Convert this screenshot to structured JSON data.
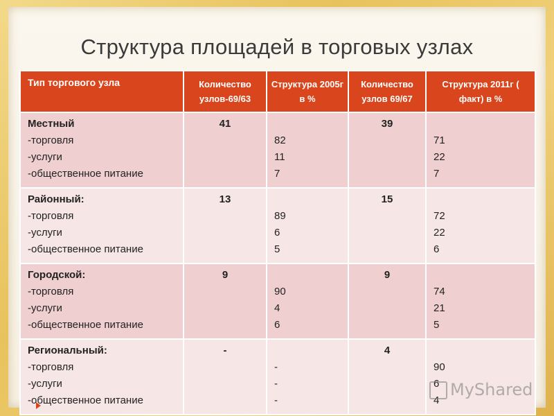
{
  "title": "Структура площадей в торговых узлах",
  "table": {
    "headers": [
      "Тип торгового узла",
      "Количество узлов-69/63",
      "Структура 2005г в %",
      "Количество узлов 69/67",
      "Структура 2011г ( факт) в %"
    ],
    "rows": [
      {
        "name": "Местный",
        "items": [
          "-торговля",
          "-услуги",
          "-общественное питание"
        ],
        "count_2005": "41",
        "struct_2005": [
          "82",
          "11",
          "7"
        ],
        "count_2011": "39",
        "struct_2011": [
          "71",
          "22",
          "7"
        ]
      },
      {
        "name": "Районный:",
        "items": [
          "-торговля",
          "-услуги",
          "-общественное питание"
        ],
        "count_2005": "13",
        "struct_2005": [
          "89",
          "6",
          "5"
        ],
        "count_2011": "15",
        "struct_2011": [
          "72",
          "22",
          "6"
        ]
      },
      {
        "name": "Городской:",
        "items": [
          "-торговля",
          "-услуги",
          "-общественное питание"
        ],
        "count_2005": "9",
        "struct_2005": [
          "90",
          "4",
          "6"
        ],
        "count_2011": "9",
        "struct_2011": [
          "74",
          "21",
          "5"
        ]
      },
      {
        "name": "Региональный:",
        "items": [
          "-торговля",
          "-услуги",
          "-общественное питание"
        ],
        "count_2005": "-",
        "struct_2005": [
          "-",
          "-",
          "-"
        ],
        "count_2011": "4",
        "struct_2011": [
          "90",
          "6",
          "4"
        ]
      }
    ]
  },
  "watermark": "MyShared",
  "colors": {
    "header": "#d9461e",
    "row_odd": "#efcfcf",
    "row_even": "#f7e6e6",
    "frame": "#e8c25c"
  }
}
